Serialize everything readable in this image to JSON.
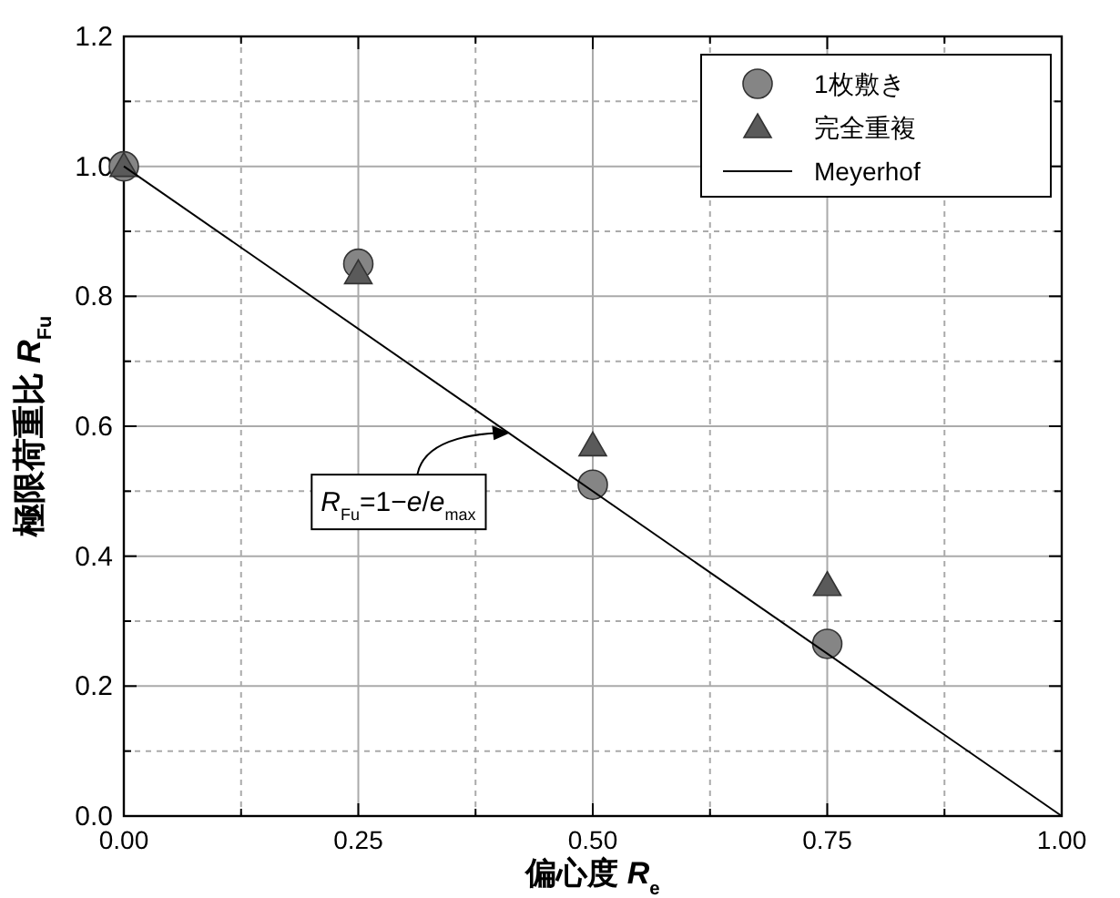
{
  "chart_data": {
    "type": "scatter",
    "xlabel": "偏心度 *R*$_{e}$",
    "ylabel": "極限荷重比 *R*$_{Fu}$",
    "xlim": [
      0,
      1
    ],
    "ylim": [
      0,
      1.2
    ],
    "xticks": [
      {
        "value": 0,
        "label": "0.00"
      },
      {
        "value": 0.125,
        "label": null
      },
      {
        "value": 0.25,
        "label": "0.25"
      },
      {
        "value": 0.375,
        "label": null
      },
      {
        "value": 0.5,
        "label": "0.50"
      },
      {
        "value": 0.625,
        "label": null
      },
      {
        "value": 0.75,
        "label": "0.75"
      },
      {
        "value": 0.875,
        "label": null
      },
      {
        "value": 1,
        "label": "1.00"
      }
    ],
    "yticks": [
      {
        "value": 0,
        "label": "0.0"
      },
      {
        "value": 0.1,
        "label": null
      },
      {
        "value": 0.2,
        "label": "0.2"
      },
      {
        "value": 0.3,
        "label": null
      },
      {
        "value": 0.4,
        "label": "0.4"
      },
      {
        "value": 0.5,
        "label": null
      },
      {
        "value": 0.6,
        "label": "0.6"
      },
      {
        "value": 0.7,
        "label": null
      },
      {
        "value": 0.8,
        "label": "0.8"
      },
      {
        "value": 0.9,
        "label": null
      },
      {
        "value": 1.0,
        "label": "1.0"
      },
      {
        "value": 1.1,
        "label": null
      },
      {
        "value": 1.2,
        "label": "1.2"
      }
    ],
    "grid": true,
    "legend": "top right",
    "x": [
      0,
      0.25,
      0.5,
      0.75
    ],
    "series": [
      {
        "name": "1枚敷き",
        "type": "scatter",
        "marker": "circle",
        "color": "#858585",
        "values": [
          1.0,
          0.85,
          0.51,
          0.265
        ]
      },
      {
        "name": "完全重複",
        "type": "scatter",
        "marker": "triangle",
        "color": "#5a5a5a",
        "values": [
          1.0,
          0.835,
          0.57,
          0.355
        ]
      },
      {
        "name": "Meyerhof",
        "type": "line",
        "color": "#000000",
        "x": [
          0,
          1
        ],
        "values": [
          1,
          0
        ]
      }
    ],
    "annotations": [
      {
        "text": "*R*$_{Fu}$=1−*e*/*e*$_{max}$",
        "x": 0.41,
        "y": 0.59
      }
    ]
  }
}
